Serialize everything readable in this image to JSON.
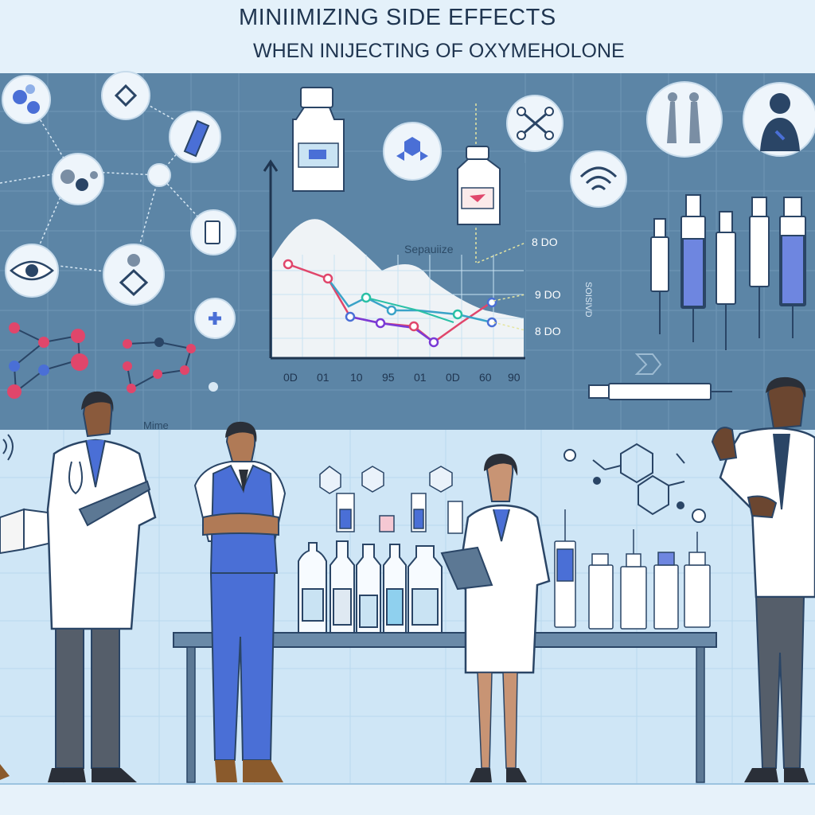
{
  "header": {
    "title": "MINIIMIZING SIDE EFFECTS",
    "subtitle": "WHEN INIJECTING OF OXYMEHOLONE"
  },
  "chart": {
    "label_center": "Sepauiize",
    "label_side": "SOISIVD",
    "label_right": [
      "8 DO",
      "9 DO",
      "8 DO"
    ],
    "x_ticks": [
      "0D",
      "01",
      "10",
      "95",
      "01",
      "0D",
      "60",
      "90"
    ]
  },
  "lab": {
    "wall_label": "Mime"
  },
  "colors": {
    "background": "#dcedf8",
    "board": "#5c85a6",
    "accent": "#4a6fd6",
    "coat": "#ffffff"
  }
}
